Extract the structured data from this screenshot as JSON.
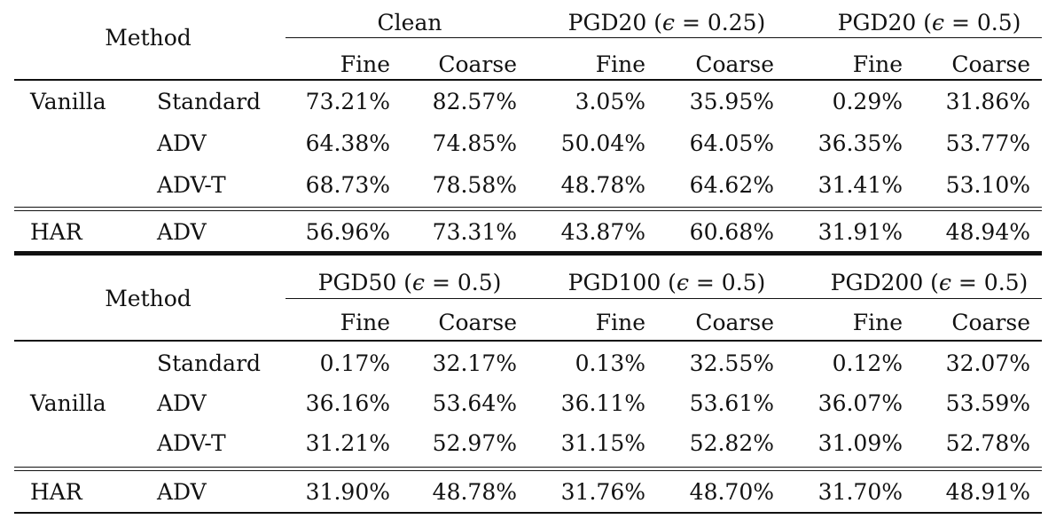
{
  "tables": [
    {
      "method_label": "Method",
      "groups": [
        {
          "pre": "",
          "eps": "",
          "post": "Clean"
        },
        {
          "pre": "PGD20 (",
          "eps": "ϵ",
          "post": " = 0.25)"
        },
        {
          "pre": "PGD20 (",
          "eps": "ϵ",
          "post": " = 0.5)"
        }
      ],
      "subheaders": [
        "Fine",
        "Coarse",
        "Fine",
        "Coarse",
        "Fine",
        "Coarse"
      ],
      "rows": [
        {
          "group": "Vanilla",
          "method": "Standard",
          "values": [
            "73.21%",
            "82.57%",
            "3.05%",
            "35.95%",
            "0.29%",
            "31.86%"
          ]
        },
        {
          "group": "",
          "method": "ADV",
          "values": [
            "64.38%",
            "74.85%",
            "50.04%",
            "64.05%",
            "36.35%",
            "53.77%"
          ]
        },
        {
          "group": "",
          "method": "ADV-T",
          "values": [
            "68.73%",
            "78.58%",
            "48.78%",
            "64.62%",
            "31.41%",
            "53.10%"
          ]
        },
        {
          "group": "HAR",
          "method": "ADV",
          "values": [
            "56.96%",
            "73.31%",
            "43.87%",
            "60.68%",
            "31.91%",
            "48.94%"
          ]
        }
      ]
    },
    {
      "method_label": "Method",
      "groups": [
        {
          "pre": "PGD50 (",
          "eps": "ϵ",
          "post": " = 0.5)"
        },
        {
          "pre": "PGD100 (",
          "eps": "ϵ",
          "post": " = 0.5)"
        },
        {
          "pre": "PGD200 (",
          "eps": "ϵ",
          "post": " = 0.5)"
        }
      ],
      "subheaders": [
        "Fine",
        "Coarse",
        "Fine",
        "Coarse",
        "Fine",
        "Coarse"
      ],
      "rows": [
        {
          "group": "",
          "method": "Standard",
          "values": [
            "0.17%",
            "32.17%",
            "0.13%",
            "32.55%",
            "0.12%",
            "32.07%"
          ]
        },
        {
          "group": "Vanilla",
          "method": "ADV",
          "values": [
            "36.16%",
            "53.64%",
            "36.11%",
            "53.61%",
            "36.07%",
            "53.59%"
          ]
        },
        {
          "group": "",
          "method": "ADV-T",
          "values": [
            "31.21%",
            "52.97%",
            "31.15%",
            "52.82%",
            "31.09%",
            "52.78%"
          ]
        },
        {
          "group": "HAR",
          "method": "ADV",
          "values": [
            "31.90%",
            "48.78%",
            "31.76%",
            "48.70%",
            "31.70%",
            "48.91%"
          ]
        }
      ]
    }
  ]
}
